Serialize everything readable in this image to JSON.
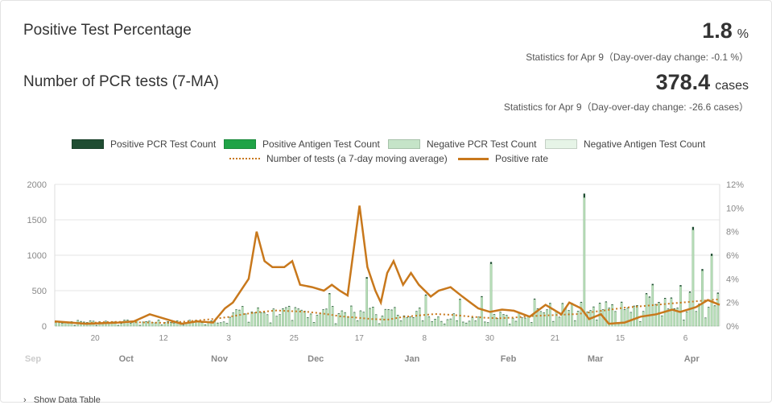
{
  "header": {
    "positive_title": "Positive Test Percentage",
    "positive_value": "1.8",
    "positive_unit": "%",
    "positive_sub": "Statistics for Apr 9（Day-over-day change: -0.1 %）",
    "pcr_title": "Number of PCR tests (7-MA)",
    "pcr_value": "378.4",
    "pcr_unit": "cases",
    "pcr_sub": "Statistics for Apr 9（Day-over-day change: -26.6 cases）"
  },
  "legend": {
    "items": [
      {
        "label": "Positive PCR Test Count",
        "color": "#1f4d32"
      },
      {
        "label": "Positive Antigen Test Count",
        "color": "#1fa346"
      },
      {
        "label": "Negative PCR Test Count",
        "color": "#c5e4c8"
      },
      {
        "label": "Negative Antigen Test Count",
        "color": "#e6f4e7"
      },
      {
        "label": "Number of tests (a 7-day moving average)",
        "color": "#c8781c"
      },
      {
        "label": "Positive rate",
        "color": "#c8781c"
      }
    ]
  },
  "chart_data": {
    "type": "bar",
    "x_start": "2020-09-07",
    "x_ticks": [
      "20",
      "Oct",
      "12",
      "3",
      "Nov",
      "25",
      "Dec",
      "17",
      "Jan",
      "8",
      "30",
      "Feb",
      "21",
      "Mar",
      "15",
      "Apr",
      "6"
    ],
    "x_month_labels": [
      "Sep",
      "Oct",
      "Nov",
      "Dec",
      "Jan",
      "Feb",
      "Mar",
      "Apr"
    ],
    "x_day_labels": [
      "20",
      "12",
      "3",
      "25",
      "17",
      "8",
      "30",
      "21",
      "15",
      "6"
    ],
    "y_left": {
      "ticks": [
        "0",
        "500",
        "1000",
        "1500",
        "2000"
      ],
      "lim": [
        0,
        2000
      ]
    },
    "y_right": {
      "ticks": [
        "0%",
        "2%",
        "4%",
        "6%",
        "8%",
        "10%",
        "12%"
      ],
      "lim": [
        0,
        12
      ]
    },
    "series": [
      {
        "name": "Number of tests (a 7-day moving average)",
        "style": "dotted",
        "points": [
          [
            0,
            60
          ],
          [
            20,
            45
          ],
          [
            40,
            40
          ],
          [
            60,
            55
          ],
          [
            80,
            60
          ],
          [
            100,
            55
          ],
          [
            120,
            50
          ],
          [
            140,
            45
          ],
          [
            160,
            60
          ],
          [
            180,
            80
          ],
          [
            200,
            100
          ],
          [
            220,
            130
          ],
          [
            240,
            170
          ],
          [
            260,
            200
          ],
          [
            280,
            220
          ],
          [
            300,
            210
          ],
          [
            320,
            200
          ],
          [
            340,
            175
          ],
          [
            360,
            140
          ],
          [
            380,
            120
          ],
          [
            400,
            100
          ],
          [
            420,
            90
          ],
          [
            440,
            130
          ],
          [
            460,
            150
          ],
          [
            480,
            170
          ],
          [
            500,
            160
          ],
          [
            520,
            140
          ],
          [
            540,
            120
          ],
          [
            560,
            110
          ],
          [
            580,
            120
          ],
          [
            600,
            140
          ],
          [
            620,
            150
          ],
          [
            640,
            160
          ],
          [
            660,
            170
          ],
          [
            680,
            200
          ],
          [
            700,
            230
          ],
          [
            720,
            260
          ],
          [
            740,
            280
          ],
          [
            760,
            300
          ],
          [
            780,
            320
          ],
          [
            800,
            340
          ],
          [
            820,
            360
          ],
          [
            840,
            378
          ]
        ]
      },
      {
        "name": "Positive rate",
        "style": "solid",
        "points": [
          [
            0,
            0.4
          ],
          [
            40,
            0.2
          ],
          [
            80,
            0.3
          ],
          [
            100,
            0.4
          ],
          [
            120,
            1.0
          ],
          [
            140,
            0.6
          ],
          [
            160,
            0.2
          ],
          [
            180,
            0.4
          ],
          [
            200,
            0.3
          ],
          [
            215,
            1.5
          ],
          [
            225,
            2.0
          ],
          [
            245,
            4.0
          ],
          [
            255,
            8.0
          ],
          [
            265,
            5.5
          ],
          [
            275,
            5.0
          ],
          [
            290,
            5.0
          ],
          [
            300,
            5.5
          ],
          [
            310,
            3.5
          ],
          [
            325,
            3.3
          ],
          [
            340,
            3.0
          ],
          [
            350,
            3.5
          ],
          [
            360,
            3.0
          ],
          [
            370,
            2.6
          ],
          [
            385,
            10.2
          ],
          [
            395,
            5.0
          ],
          [
            405,
            3.0
          ],
          [
            412,
            2.0
          ],
          [
            420,
            4.5
          ],
          [
            428,
            5.5
          ],
          [
            440,
            3.5
          ],
          [
            450,
            4.5
          ],
          [
            460,
            3.5
          ],
          [
            475,
            2.5
          ],
          [
            485,
            3.0
          ],
          [
            500,
            3.3
          ],
          [
            515,
            2.5
          ],
          [
            525,
            2.0
          ],
          [
            535,
            1.5
          ],
          [
            550,
            1.2
          ],
          [
            565,
            1.4
          ],
          [
            580,
            1.3
          ],
          [
            600,
            0.8
          ],
          [
            620,
            1.8
          ],
          [
            640,
            1.0
          ],
          [
            650,
            2.0
          ],
          [
            665,
            1.5
          ],
          [
            675,
            0.6
          ],
          [
            690,
            1.0
          ],
          [
            700,
            0.2
          ],
          [
            720,
            0.3
          ],
          [
            740,
            0.8
          ],
          [
            760,
            1.0
          ],
          [
            780,
            1.4
          ],
          [
            790,
            1.2
          ],
          [
            810,
            1.6
          ],
          [
            825,
            2.2
          ],
          [
            840,
            1.8
          ]
        ]
      }
    ],
    "bars_peak": [
      {
        "day": "Feb 24",
        "value": 1870
      },
      {
        "day": "Apr 2",
        "value": 1400
      }
    ]
  },
  "footer": {
    "show_table": "Show Data Table"
  }
}
